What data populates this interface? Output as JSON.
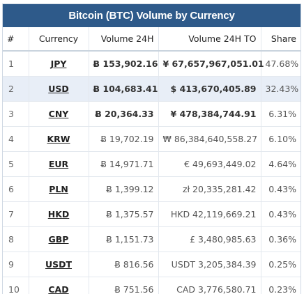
{
  "title": "Bitcoin (BTC) Volume by Currency",
  "headers": {
    "index": "#",
    "currency": "Currency",
    "volume": "Volume 24H",
    "volume_to": "Volume 24H TO",
    "share": "Share"
  },
  "rows": [
    {
      "index": "1",
      "currency": "JPY",
      "volume": "Ƀ 153,902.16",
      "volume_to": "¥ 67,657,967,051.01",
      "share": "47.68%"
    },
    {
      "index": "2",
      "currency": "USD",
      "volume": "Ƀ 104,683.41",
      "volume_to": "$ 413,670,405.89",
      "share": "32.43%"
    },
    {
      "index": "3",
      "currency": "CNY",
      "volume": "Ƀ 20,364.33",
      "volume_to": "¥ 478,384,744.91",
      "share": "6.31%"
    },
    {
      "index": "4",
      "currency": "KRW",
      "volume": "Ƀ 19,702.19",
      "volume_to": "₩ 86,384,640,558.27",
      "share": "6.10%"
    },
    {
      "index": "5",
      "currency": "EUR",
      "volume": "Ƀ 14,971.71",
      "volume_to": "€ 49,693,449.02",
      "share": "4.64%"
    },
    {
      "index": "6",
      "currency": "PLN",
      "volume": "Ƀ 1,399.12",
      "volume_to": "zł 20,335,281.42",
      "share": "0.43%"
    },
    {
      "index": "7",
      "currency": "HKD",
      "volume": "Ƀ 1,375.57",
      "volume_to": "HKD 42,119,669.21",
      "share": "0.43%"
    },
    {
      "index": "8",
      "currency": "GBP",
      "volume": "Ƀ 1,151.73",
      "volume_to": "£ 3,480,985.63",
      "share": "0.36%"
    },
    {
      "index": "9",
      "currency": "USDT",
      "volume": "Ƀ 816.56",
      "volume_to": "USDT 3,205,384.39",
      "share": "0.25%"
    },
    {
      "index": "10",
      "currency": "CAD",
      "volume": "Ƀ 751.56",
      "volume_to": "CAD 3,776,580.71",
      "share": "0.23%"
    }
  ],
  "colors": {
    "title_bar": "#2e5a8a",
    "highlight_row": "#e8eef7"
  }
}
